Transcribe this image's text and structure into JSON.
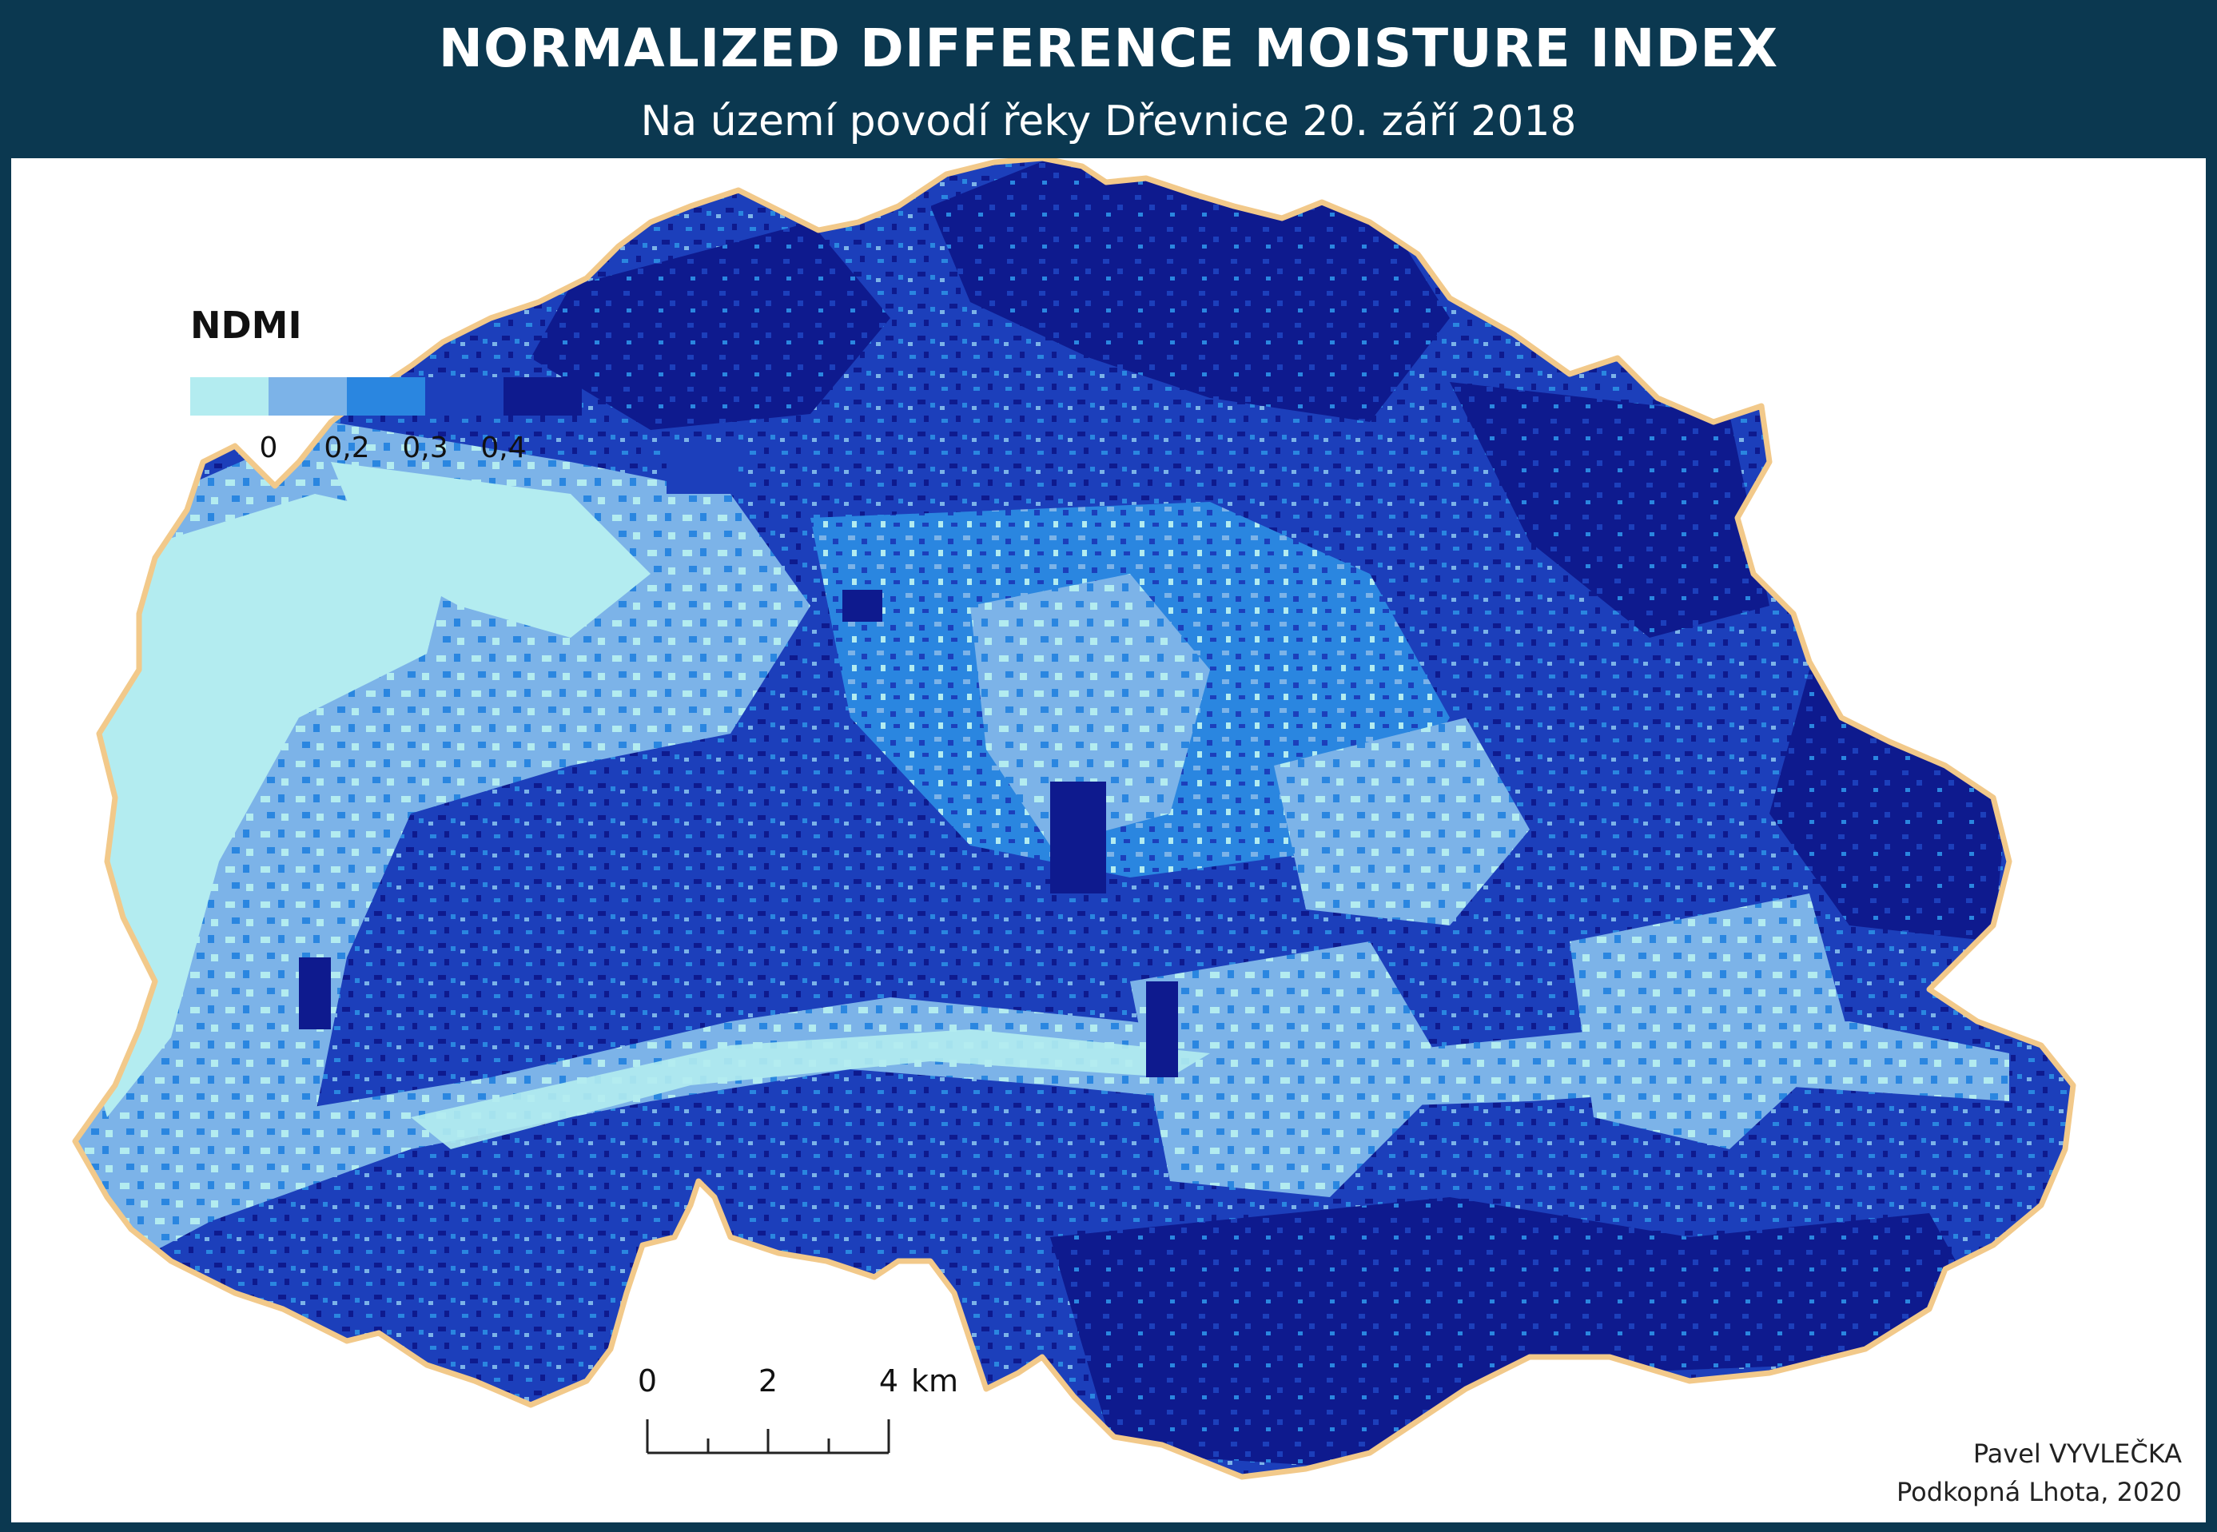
{
  "header": {
    "title": "NORMALIZED DIFFERENCE MOISTURE INDEX",
    "subtitle": "Na území povodí řeky Dřevnice 20. září 2018"
  },
  "legend": {
    "title": "NDMI",
    "colors": [
      "#b3ecf0",
      "#7cb3e8",
      "#2a86e0",
      "#1c3fbb",
      "#0e1a8e"
    ],
    "ticks": [
      "0",
      "0,2",
      "0,3",
      "0,4"
    ]
  },
  "map": {
    "boundary_color": "#f2c98a",
    "colors": {
      "very_low": "#b3ecf0",
      "low": "#7cb3e8",
      "medium": "#2a86e0",
      "high": "#1c3fbb",
      "very_high": "#0e1a8e"
    }
  },
  "scalebar": {
    "labels": [
      "0",
      "2",
      "4"
    ],
    "unit": "km"
  },
  "credits": {
    "author": "Pavel VYVLEČKA",
    "place_year": "Podkopná Lhota, 2020"
  }
}
